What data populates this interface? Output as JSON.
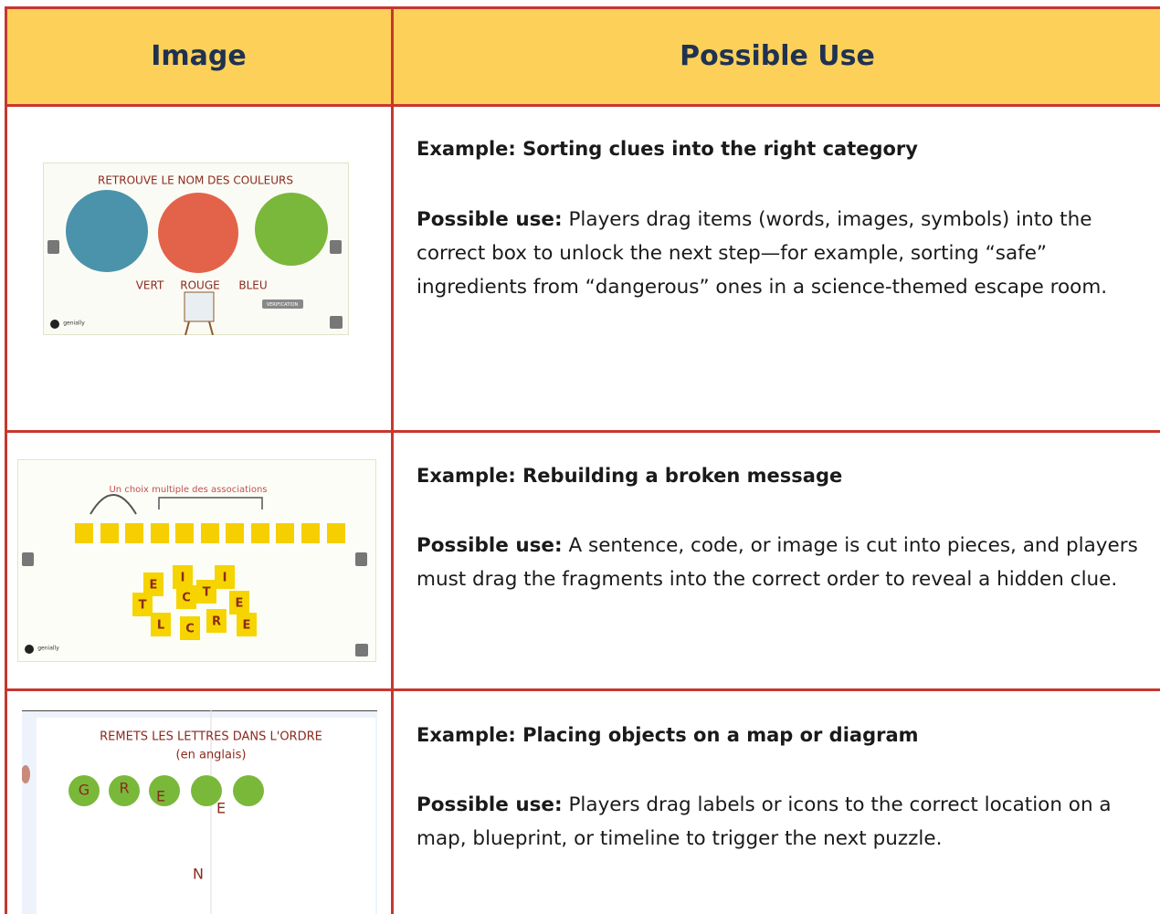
{
  "table": {
    "headers": [
      "Image",
      "Possible Use"
    ],
    "rows": [
      {
        "image": {
          "title": "RETROUVE LE NOM DES COULEURS",
          "words": [
            "VERT",
            "ROUGE",
            "BLEU"
          ],
          "button": "VERIFICATION",
          "logo": "genially"
        },
        "example": "Example: Sorting clues into the right category",
        "use_label": "Possible use:",
        "use_text": "Players drag items (words, images, symbols) into the correct box to unlock the next step—for example, sorting “safe” ingredients from “dangerous” ones in a science-themed escape room."
      },
      {
        "image": {
          "title": "Un choix multiple des associations",
          "tiles": [
            "E",
            "I",
            "I",
            "T",
            "C",
            "T",
            "E",
            "L",
            "C",
            "R",
            "E"
          ],
          "logo": "genially"
        },
        "example": "Example: Rebuilding a broken message",
        "use_label": "Possible use:",
        "use_text": "A sentence, code, or image is cut into pieces, and players must drag the fragments into the correct order to reveal a hidden clue."
      },
      {
        "image": {
          "title": "REMETS LES LETTRES DANS L'ORDRE",
          "subtitle": "(en anglais)",
          "letters": [
            "G",
            "R",
            "E",
            "E",
            "N"
          ]
        },
        "example": "Example: Placing objects on a map or diagram",
        "use_label": "Possible use:",
        "use_text": "Players drag labels or icons to the correct location on a map, blueprint, or timeline to trigger the next puzzle."
      }
    ]
  }
}
